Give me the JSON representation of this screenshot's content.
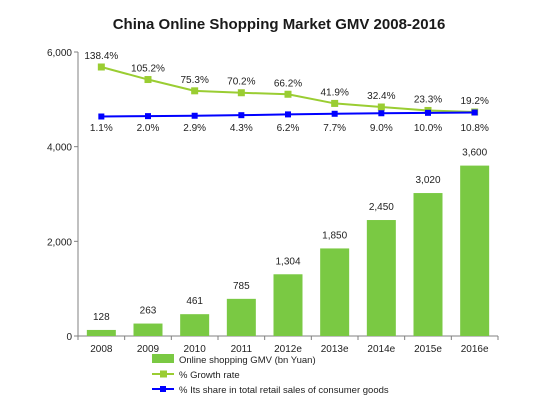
{
  "chart_data": {
    "type": "bar",
    "title": "China Online  Shopping Market GMV 2008-2016",
    "categories": [
      "2008",
      "2009",
      "2010",
      "2011",
      "2012e",
      "2013e",
      "2014e",
      "2015e",
      "2016e"
    ],
    "ylim": [
      0,
      6000
    ],
    "yticks": [
      "0",
      "2,000",
      "4,000",
      "6,000"
    ],
    "grid": false,
    "legend_position": "bottom",
    "colors": {
      "bar": "#7ac943",
      "growth_line": "#9acd32",
      "share_line": "#0000ff"
    },
    "series": [
      {
        "name": "Online shopping GMV (bn Yuan)",
        "type": "bar",
        "values": [
          128,
          263,
          461,
          785,
          1304,
          1850,
          2450,
          3020,
          3600
        ],
        "labels": [
          "128",
          "263",
          "461",
          "785",
          "1,304",
          "1,850",
          "2,450",
          "3,020",
          "3,600"
        ]
      },
      {
        "name": "% Growth rate",
        "type": "line",
        "values": [
          138.4,
          105.2,
          75.3,
          70.2,
          66.2,
          41.9,
          32.4,
          23.3,
          19.2
        ],
        "labels": [
          "138.4%",
          "105.2%",
          "75.3%",
          "70.2%",
          "66.2%",
          "41.9%",
          "32.4%",
          "23.3%",
          "19.2%"
        ]
      },
      {
        "name": "% Its share in total retail sales of consumer goods",
        "type": "line",
        "values": [
          1.1,
          2.0,
          2.9,
          4.3,
          6.2,
          7.7,
          9.0,
          10.0,
          10.8
        ],
        "labels": [
          "1.1%",
          "2.0%",
          "2.9%",
          "4.3%",
          "6.2%",
          "7.7%",
          "9.0%",
          "10.0%",
          "10.8%"
        ]
      }
    ]
  }
}
